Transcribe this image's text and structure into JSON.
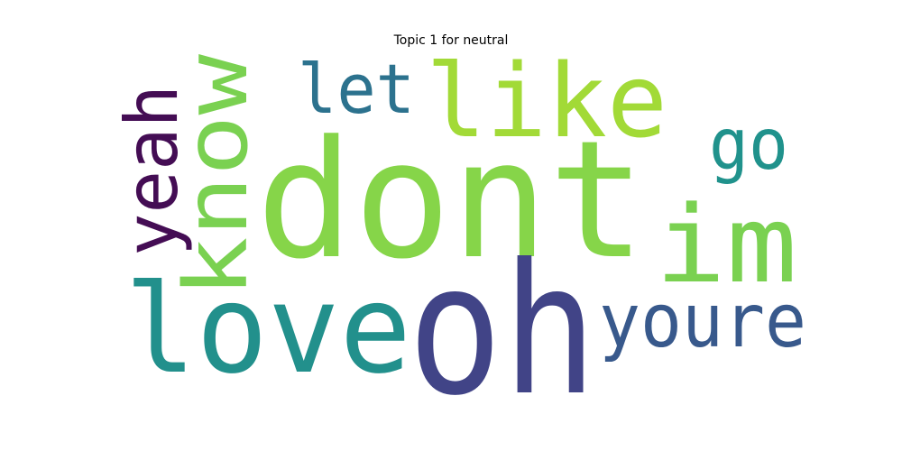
{
  "title": "Topic 1 for neutral",
  "words": [
    {
      "text": "dont",
      "color": "#86d549"
    },
    {
      "text": "oh",
      "color": "#414487"
    },
    {
      "text": "love",
      "color": "#22908c"
    },
    {
      "text": "like",
      "color": "#a2da37"
    },
    {
      "text": "im",
      "color": "#7ad151"
    },
    {
      "text": "know",
      "color": "#7ad151"
    },
    {
      "text": "youre",
      "color": "#38598c"
    },
    {
      "text": "yeah",
      "color": "#440d54"
    },
    {
      "text": "let",
      "color": "#2c728e"
    },
    {
      "text": "go",
      "color": "#20928c"
    }
  ]
}
